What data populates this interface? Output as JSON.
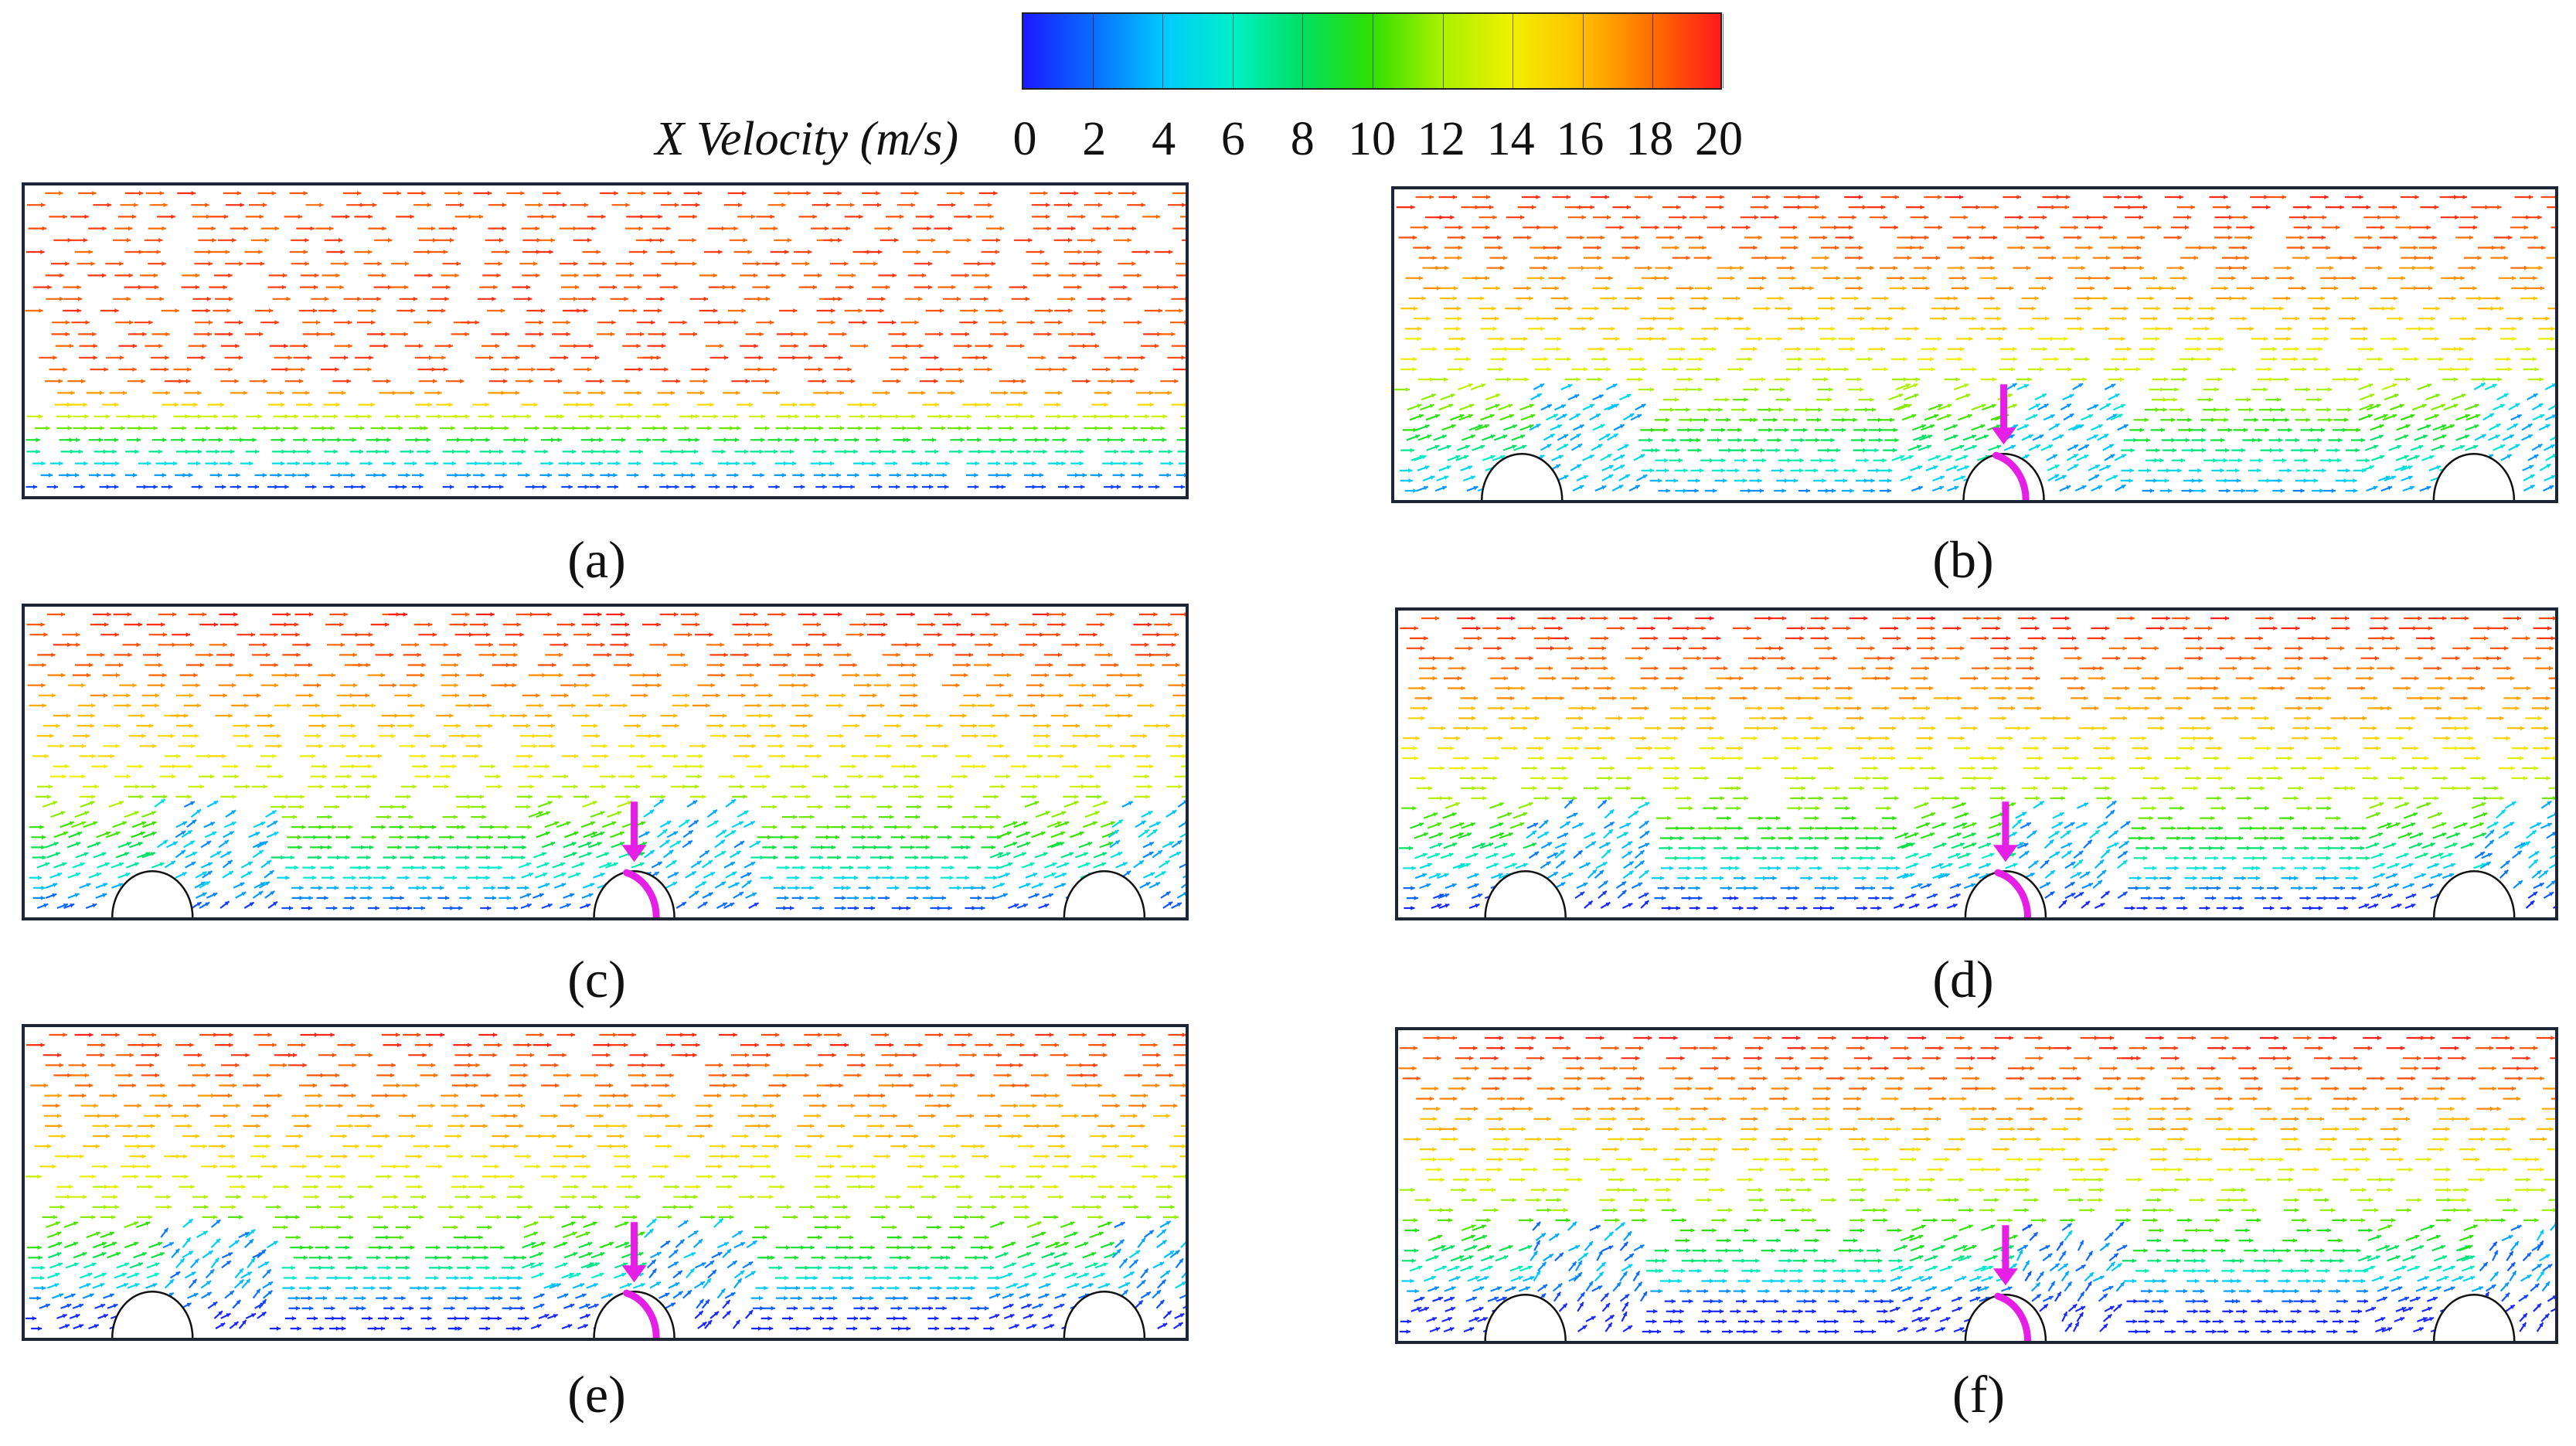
{
  "legend": {
    "title": "X Velocity (m/s)",
    "ticks": [
      "0",
      "2",
      "4",
      "6",
      "8",
      "10",
      "12",
      "14",
      "16",
      "18",
      "20"
    ],
    "min": 0,
    "max": 20,
    "colormap": [
      "#1a1aff",
      "#0a6cff",
      "#00c8ff",
      "#00f0c8",
      "#00e060",
      "#30e000",
      "#a8f000",
      "#f0f000",
      "#ffc000",
      "#ff7000",
      "#ff1a1a"
    ]
  },
  "panels": [
    {
      "label": "(a)",
      "obstacles": 0,
      "arrow_marker": false
    },
    {
      "label": "(b)",
      "obstacles": 3,
      "arrow_marker": true
    },
    {
      "label": "(c)",
      "obstacles": 3,
      "arrow_marker": true
    },
    {
      "label": "(d)",
      "obstacles": 3,
      "arrow_marker": true
    },
    {
      "label": "(e)",
      "obstacles": 3,
      "arrow_marker": true
    },
    {
      "label": "(f)",
      "obstacles": 3,
      "arrow_marker": true
    }
  ],
  "colors": {
    "marker": "#e61fe6",
    "frame": "#1d2536",
    "obstacle": "#111111"
  }
}
